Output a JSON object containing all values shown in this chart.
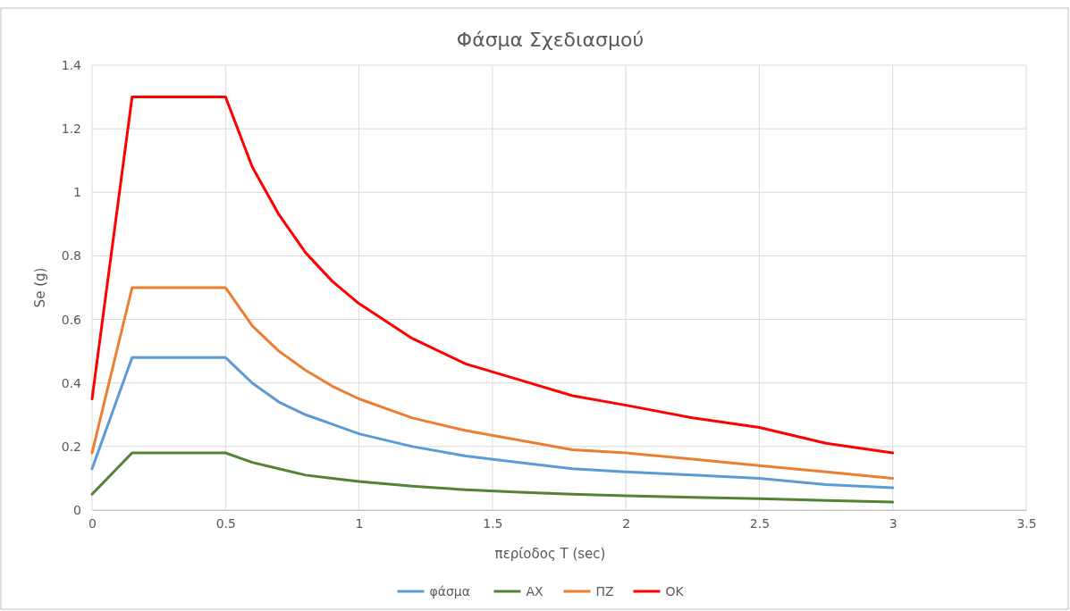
{
  "chart_data": {
    "type": "line",
    "title": "Φάσμα Σχεδιασμού",
    "xlabel": "περίοδος T (sec)",
    "ylabel": "Se (g)",
    "x": [
      0,
      0.15,
      0.5,
      0.6,
      0.7,
      0.8,
      0.9,
      1.0,
      1.2,
      1.4,
      1.6,
      1.8,
      2.0,
      2.25,
      2.5,
      2.75,
      3
    ],
    "series": [
      {
        "name": "φάσμα",
        "color": "#5b9bd5",
        "values": [
          0.13,
          0.48,
          0.48,
          0.4,
          0.34,
          0.3,
          0.27,
          0.24,
          0.2,
          0.17,
          0.15,
          0.13,
          0.12,
          0.11,
          0.1,
          0.08,
          0.07
        ]
      },
      {
        "name": "AX",
        "color": "#548235",
        "values": [
          0.05,
          0.18,
          0.18,
          0.15,
          0.13,
          0.11,
          0.1,
          0.09,
          0.075,
          0.064,
          0.056,
          0.05,
          0.045,
          0.04,
          0.036,
          0.03,
          0.025
        ]
      },
      {
        "name": "ΠΖ",
        "color": "#ed7d31",
        "values": [
          0.18,
          0.7,
          0.7,
          0.58,
          0.5,
          0.44,
          0.39,
          0.35,
          0.29,
          0.25,
          0.22,
          0.19,
          0.18,
          0.16,
          0.14,
          0.12,
          0.1
        ]
      },
      {
        "name": "OK",
        "color": "#ff0000",
        "values": [
          0.35,
          1.3,
          1.3,
          1.08,
          0.93,
          0.81,
          0.72,
          0.65,
          0.54,
          0.46,
          0.41,
          0.36,
          0.33,
          0.29,
          0.26,
          0.21,
          0.18
        ]
      }
    ],
    "xlim": [
      0,
      3.5
    ],
    "xticks": [
      0,
      0.5,
      1,
      1.5,
      2,
      2.5,
      3,
      3.5
    ],
    "ylim": [
      0,
      1.4
    ],
    "yticks": [
      0,
      0.2,
      0.4,
      0.6,
      0.8,
      1,
      1.2,
      1.4
    ],
    "grid": true,
    "legend": "bottom"
  }
}
